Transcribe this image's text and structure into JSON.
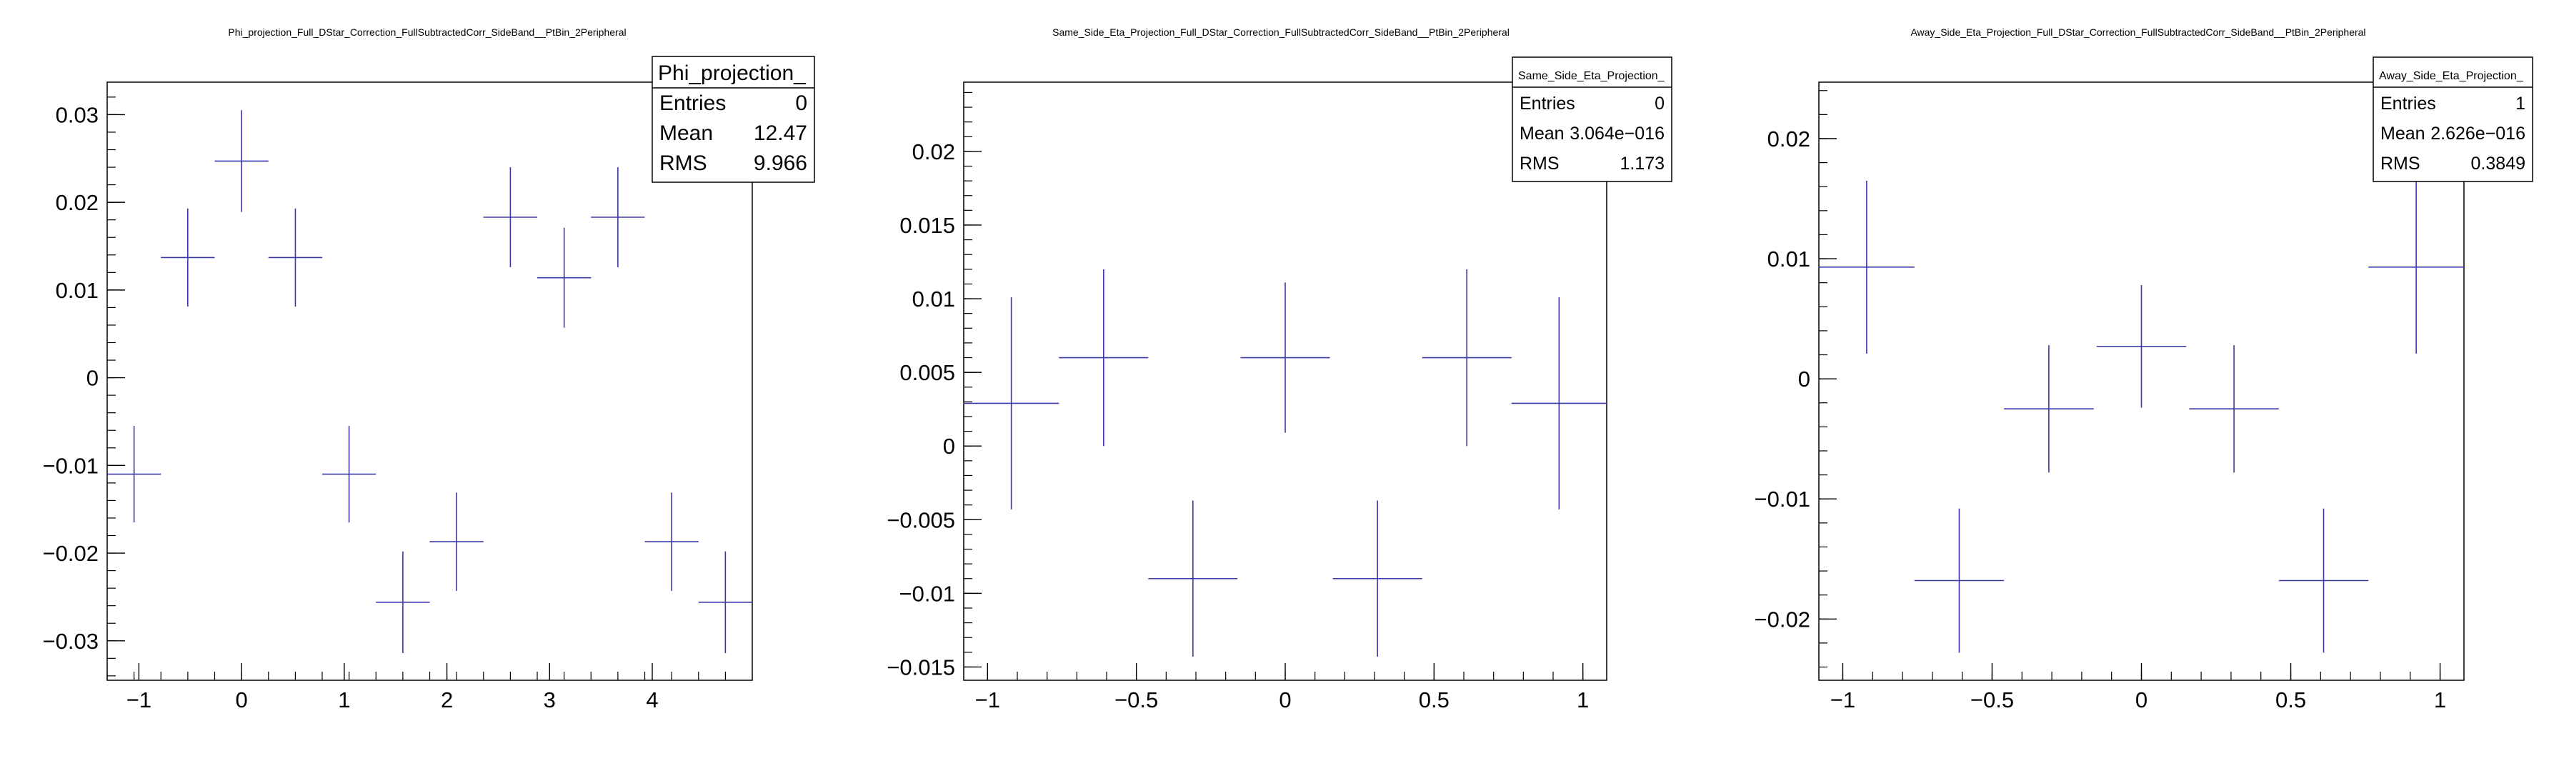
{
  "chart_data": [
    {
      "type": "scatter",
      "style": "error-bars",
      "title": "Phi_projection_Full_DStar_Correction_FullSubtractedCorr_SideBand__PtBin_2Peripheral",
      "stats": {
        "name": "Phi_projection_",
        "rows": [
          {
            "label": "Entries",
            "value": "0"
          },
          {
            "label": "Mean",
            "value": "12.47"
          },
          {
            "label": "RMS",
            "value": "9.966"
          }
        ]
      },
      "xlim": [
        -1.309,
        4.974
      ],
      "ylim": [
        -0.0345,
        0.0337
      ],
      "xticks": [
        -1,
        0,
        1,
        2,
        3,
        4
      ],
      "xtick_labels": [
        "−1",
        "0",
        "1",
        "2",
        "3",
        "4"
      ],
      "yticks": [
        -0.03,
        -0.02,
        -0.01,
        0,
        0.01,
        0.02,
        0.03
      ],
      "ytick_labels": [
        "−0.03",
        "−0.02",
        "−0.01",
        "0",
        "0.01",
        "0.02",
        "0.03"
      ],
      "x_minor_step": 0.2618,
      "y_minor_step": 0.002,
      "points": [
        {
          "x": -1.047,
          "xerr": 0.262,
          "y": -0.011,
          "yerr": 0.0055
        },
        {
          "x": -0.524,
          "xerr": 0.262,
          "y": 0.0137,
          "yerr": 0.0056
        },
        {
          "x": 0.0,
          "xerr": 0.262,
          "y": 0.0247,
          "yerr": 0.0058
        },
        {
          "x": 0.524,
          "xerr": 0.262,
          "y": 0.0137,
          "yerr": 0.0056
        },
        {
          "x": 1.047,
          "xerr": 0.262,
          "y": -0.011,
          "yerr": 0.0055
        },
        {
          "x": 1.571,
          "xerr": 0.262,
          "y": -0.0256,
          "yerr": 0.0058
        },
        {
          "x": 2.094,
          "xerr": 0.262,
          "y": -0.0187,
          "yerr": 0.0056
        },
        {
          "x": 2.618,
          "xerr": 0.262,
          "y": 0.0183,
          "yerr": 0.0057
        },
        {
          "x": 3.142,
          "xerr": 0.262,
          "y": 0.0114,
          "yerr": 0.0057
        },
        {
          "x": 3.665,
          "xerr": 0.262,
          "y": 0.0183,
          "yerr": 0.0057
        },
        {
          "x": 4.189,
          "xerr": 0.262,
          "y": -0.0187,
          "yerr": 0.0056
        },
        {
          "x": 4.712,
          "xerr": 0.262,
          "y": -0.0256,
          "yerr": 0.0058
        }
      ]
    },
    {
      "type": "scatter",
      "style": "error-bars",
      "title": "Same_Side_Eta_Projection_Full_DStar_Correction_FullSubtractedCorr_SideBand__PtBin_2Peripheral",
      "stats": {
        "name": "Same_Side_Eta_Projection_",
        "rows": [
          {
            "label": "Entries",
            "value": "0"
          },
          {
            "label": "Mean",
            "value": "3.064e−016"
          },
          {
            "label": "RMS",
            "value": "1.173"
          }
        ]
      },
      "xlim": [
        -1.08,
        1.08
      ],
      "ylim": [
        -0.0159,
        0.0247
      ],
      "xticks": [
        -1,
        -0.5,
        0,
        0.5,
        1
      ],
      "xtick_labels": [
        "−1",
        "−0.5",
        "0",
        "0.5",
        "1"
      ],
      "yticks": [
        -0.015,
        -0.01,
        -0.005,
        0,
        0.005,
        0.01,
        0.015,
        0.02
      ],
      "ytick_labels": [
        "−0.015",
        "−0.01",
        "−0.005",
        "0",
        "0.005",
        "0.01",
        "0.015",
        "0.02"
      ],
      "x_minor_step": 0.1,
      "y_minor_step": 0.001,
      "points": [
        {
          "x": -0.92,
          "xerr": 0.16,
          "y": 0.0029,
          "yerr": 0.0072
        },
        {
          "x": -0.61,
          "xerr": 0.15,
          "y": 0.006,
          "yerr": 0.006
        },
        {
          "x": -0.31,
          "xerr": 0.15,
          "y": -0.009,
          "yerr": 0.0053
        },
        {
          "x": 0.0,
          "xerr": 0.15,
          "y": 0.006,
          "yerr": 0.0051
        },
        {
          "x": 0.31,
          "xerr": 0.15,
          "y": -0.009,
          "yerr": 0.0053
        },
        {
          "x": 0.61,
          "xerr": 0.15,
          "y": 0.006,
          "yerr": 0.006
        },
        {
          "x": 0.92,
          "xerr": 0.16,
          "y": 0.0029,
          "yerr": 0.0072
        }
      ]
    },
    {
      "type": "scatter",
      "style": "error-bars",
      "title": "Away_Side_Eta_Projection_Full_DStar_Correction_FullSubtractedCorr_SideBand__PtBin_2Peripheral",
      "stats": {
        "name": "Away_Side_Eta_Projection_",
        "rows": [
          {
            "label": "Entries",
            "value": "1"
          },
          {
            "label": "Mean",
            "value": "2.626e−016"
          },
          {
            "label": "RMS",
            "value": "0.3849"
          }
        ]
      },
      "xlim": [
        -1.08,
        1.08
      ],
      "ylim": [
        -0.0251,
        0.0247
      ],
      "xticks": [
        -1,
        -0.5,
        0,
        0.5,
        1
      ],
      "xtick_labels": [
        "−1",
        "−0.5",
        "0",
        "0.5",
        "1"
      ],
      "yticks": [
        -0.02,
        -0.01,
        0,
        0.01,
        0.02
      ],
      "ytick_labels": [
        "−0.02",
        "−0.01",
        "0",
        "0.01",
        "0.02"
      ],
      "x_minor_step": 0.1,
      "y_minor_step": 0.002,
      "points": [
        {
          "x": -0.92,
          "xerr": 0.16,
          "y": 0.0093,
          "yerr": 0.0072
        },
        {
          "x": -0.61,
          "xerr": 0.15,
          "y": -0.0168,
          "yerr": 0.006
        },
        {
          "x": -0.31,
          "xerr": 0.15,
          "y": -0.0025,
          "yerr": 0.0053
        },
        {
          "x": 0.0,
          "xerr": 0.15,
          "y": 0.0027,
          "yerr": 0.0051
        },
        {
          "x": 0.31,
          "xerr": 0.15,
          "y": -0.0025,
          "yerr": 0.0053
        },
        {
          "x": 0.61,
          "xerr": 0.15,
          "y": -0.0168,
          "yerr": 0.006
        },
        {
          "x": 0.92,
          "xerr": 0.16,
          "y": 0.0093,
          "yerr": 0.0072
        }
      ]
    }
  ],
  "colors": {
    "marker": "#3838a8",
    "axis": "#000000",
    "background": "#ffffff"
  }
}
